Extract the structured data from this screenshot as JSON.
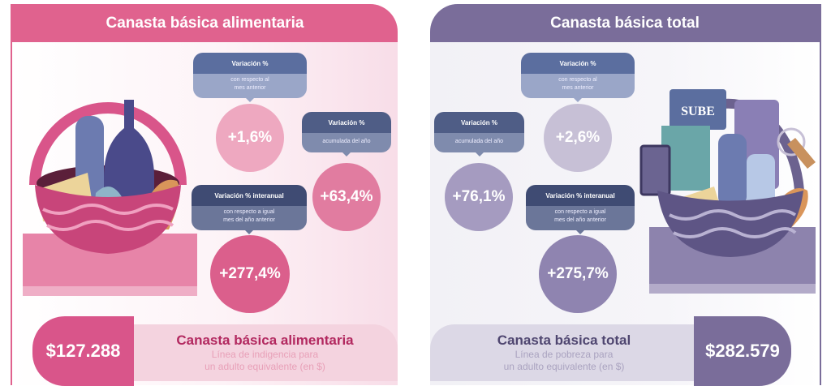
{
  "colors": {
    "pink": "#e0628e",
    "purple": "#7a6d9a"
  },
  "left": {
    "title": "Canasta básica alimentaria",
    "monthly": {
      "label": "Variación %",
      "sub1": "con respecto al",
      "sub2": "mes anterior",
      "value": "+1,6%"
    },
    "ytd": {
      "label": "Variación %",
      "sub1": "acumulada del año",
      "value": "+63,4%"
    },
    "yoy": {
      "label": "Variación % interanual",
      "sub1": "con respecto a igual",
      "sub2": "mes del año anterior",
      "value": "+277,4%"
    },
    "amount": "$127.288",
    "footer_title": "Canasta básica alimentaria",
    "footer_sub1": "Línea de indigencia para",
    "footer_sub2": "un adulto equivalente (en $)"
  },
  "right": {
    "title": "Canasta básica total",
    "monthly": {
      "label": "Variación %",
      "sub1": "con respecto al",
      "sub2": "mes anterior",
      "value": "+2,6%"
    },
    "ytd": {
      "label": "Variación %",
      "sub1": "acumulada del año",
      "value": "+76,1%"
    },
    "yoy": {
      "label": "Variación % interanual",
      "sub1": "con respecto a igual",
      "sub2": "mes del año anterior",
      "value": "+275,7%"
    },
    "amount": "$282.579",
    "footer_title": "Canasta básica total",
    "footer_sub1": "Línea de pobreza para",
    "footer_sub2": "un adulto equivalente (en $)",
    "card_text": "SUBE"
  }
}
